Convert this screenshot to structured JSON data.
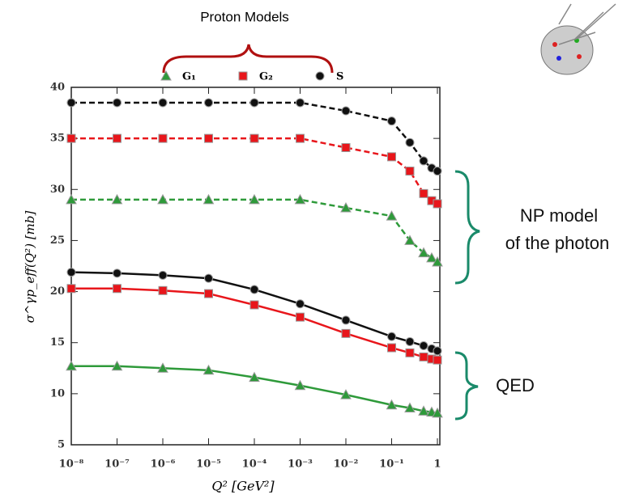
{
  "chart_data": {
    "type": "line",
    "title": "Proton Models",
    "x_label": "Q² [GeV²]",
    "y_label": "σ^γp_eff(Q²) [mb]",
    "xscale": "log",
    "x": [
      1e-08,
      1e-07,
      1e-06,
      1e-05,
      0.0001,
      0.001,
      0.01,
      0.1,
      0.25,
      0.5,
      0.75,
      1
    ],
    "series": [
      {
        "name": "G₁",
        "color": "#2e9a3a",
        "marker": "triangle",
        "np_values": [
          29,
          29,
          29,
          29,
          29,
          29,
          28.2,
          27.4,
          25.0,
          23.8,
          23.3,
          22.9
        ],
        "qed_values": [
          12.7,
          12.7,
          12.5,
          12.3,
          11.6,
          10.8,
          9.9,
          8.9,
          8.6,
          8.3,
          8.2,
          8.1
        ]
      },
      {
        "name": "G₂",
        "color": "#e8161b",
        "marker": "square",
        "np_values": [
          35,
          35,
          35,
          35,
          35,
          35,
          34.1,
          33.2,
          31.8,
          29.6,
          28.9,
          28.6
        ],
        "qed_values": [
          20.3,
          20.3,
          20.1,
          19.8,
          18.7,
          17.5,
          15.9,
          14.5,
          14.0,
          13.6,
          13.4,
          13.3
        ]
      },
      {
        "name": "S",
        "color": "#111111",
        "marker": "circle",
        "np_values": [
          38.5,
          38.5,
          38.5,
          38.5,
          38.5,
          38.5,
          37.7,
          36.7,
          34.6,
          32.8,
          32.1,
          31.8
        ],
        "qed_values": [
          21.9,
          21.8,
          21.6,
          21.3,
          20.2,
          18.8,
          17.2,
          15.6,
          15.1,
          14.7,
          14.4,
          14.2
        ]
      }
    ],
    "xlim": [
      1e-08,
      1
    ],
    "xticks": [
      {
        "value": 1e-08,
        "label": "10⁻⁸"
      },
      {
        "value": 1e-07,
        "label": "10⁻⁷"
      },
      {
        "value": 1e-06,
        "label": "10⁻⁶"
      },
      {
        "value": 1e-05,
        "label": "10⁻⁵"
      },
      {
        "value": 0.0001,
        "label": "10⁻⁴"
      },
      {
        "value": 0.001,
        "label": "10⁻³"
      },
      {
        "value": 0.01,
        "label": "10⁻²"
      },
      {
        "value": 0.1,
        "label": "10⁻¹"
      },
      1
    ],
    "ylim": [
      5,
      40
    ],
    "yticks": [
      5,
      10,
      15,
      20,
      25,
      30,
      35,
      40
    ],
    "annotations": {
      "np": [
        "NP model",
        "of the photon"
      ],
      "qed": "QED"
    }
  }
}
